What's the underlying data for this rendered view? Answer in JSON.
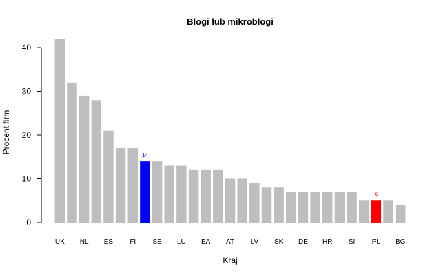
{
  "chart_data": {
    "type": "bar",
    "title": "Blogi lub mikroblogi",
    "xlabel": "Kraj",
    "ylabel": "Procent firm",
    "ylim": [
      0,
      43
    ],
    "yticks": [
      0,
      10,
      20,
      30,
      40
    ],
    "grid": false,
    "legend": "none",
    "categories": [
      "UK",
      "?",
      "NL",
      "?",
      "ES",
      "?",
      "FI",
      "?",
      "SE",
      "?",
      "LU",
      "?",
      "EA",
      "?",
      "AT",
      "?",
      "LV",
      "?",
      "SK",
      "?",
      "DE",
      "?",
      "HR",
      "?",
      "SI",
      "?",
      "PL",
      "?",
      "BG"
    ],
    "tick_labels": [
      "UK",
      "",
      "NL",
      "",
      "ES",
      "",
      "FI",
      "",
      "SE",
      "",
      "LU",
      "",
      "EA",
      "",
      "AT",
      "",
      "LV",
      "",
      "SK",
      "",
      "DE",
      "",
      "HR",
      "",
      "SI",
      "",
      "PL",
      "",
      "BG"
    ],
    "values": [
      42,
      32,
      29,
      28,
      21,
      17,
      17,
      14,
      14,
      13,
      13,
      12,
      12,
      12,
      10,
      10,
      9,
      8,
      8,
      7,
      7,
      7,
      7,
      7,
      7,
      5,
      5,
      5,
      4
    ],
    "highlights": [
      {
        "index": 7,
        "color": "#0000ff",
        "label": "14"
      },
      {
        "index": 26,
        "color": "#ff0000",
        "label": "5"
      }
    ],
    "default_color": "#bebebe"
  }
}
